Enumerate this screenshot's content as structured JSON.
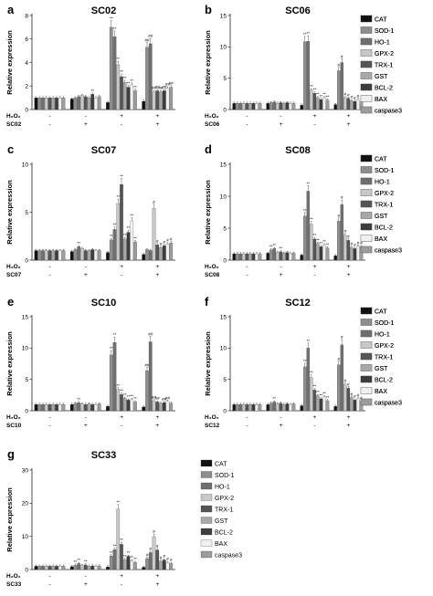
{
  "figure": {
    "condition_rows": [
      "H₂O₂",
      "SC02",
      "SC06",
      "SC07",
      "SC08",
      "SC10",
      "SC12",
      "SC33"
    ],
    "signs": {
      "minus": "-",
      "plus": "+"
    }
  },
  "colors": {
    "CAT": "#111111",
    "SOD-1": "#8e8e8e",
    "HO-1": "#6f6f6f",
    "GPX-2": "#c8c8c8",
    "TRX-1": "#555555",
    "GST": "#a8a8a8",
    "BCL-2": "#3d3d3d",
    "BAX": "#f0f0f0",
    "caspase3": "#9c9c9c"
  },
  "chart_data": [
    {
      "panel": "a",
      "type": "bar",
      "title": "SC02",
      "ylabel": "Relative expression",
      "ylim": [
        0,
        8
      ],
      "yticks": [
        "0",
        "2",
        "4",
        "6",
        "8"
      ],
      "treatment_label": "SC02",
      "groups": [
        {
          "h2o2": "-",
          "treatment": "-"
        },
        {
          "h2o2": "-",
          "treatment": "+"
        },
        {
          "h2o2": "+",
          "treatment": "-"
        },
        {
          "h2o2": "+",
          "treatment": "+"
        }
      ],
      "series": [
        {
          "name": "CAT",
          "values": [
            1.0,
            0.9,
            0.6,
            0.7
          ]
        },
        {
          "name": "SOD-1",
          "values": [
            1.0,
            1.0,
            7.0,
            5.3
          ]
        },
        {
          "name": "HO-1",
          "values": [
            1.0,
            1.1,
            6.2,
            5.6
          ]
        },
        {
          "name": "GPX-2",
          "values": [
            1.0,
            1.2,
            3.8,
            1.5
          ]
        },
        {
          "name": "TRX-1",
          "values": [
            1.0,
            1.1,
            2.8,
            1.6
          ]
        },
        {
          "name": "GST",
          "values": [
            1.0,
            1.0,
            2.3,
            1.5
          ]
        },
        {
          "name": "BCL-2",
          "values": [
            1.0,
            1.3,
            1.9,
            1.6
          ]
        },
        {
          "name": "BAX",
          "values": [
            1.0,
            1.0,
            2.1,
            1.8
          ]
        },
        {
          "name": "caspase3",
          "values": [
            1.0,
            1.1,
            1.6,
            1.9
          ]
        }
      ],
      "annotations": [
        "**",
        "##"
      ]
    },
    {
      "panel": "b",
      "type": "bar",
      "title": "SC06",
      "ylabel": "Relative expression",
      "ylim": [
        0,
        15
      ],
      "yticks": [
        "0",
        "5",
        "10",
        "15"
      ],
      "treatment_label": "SC06",
      "groups": [
        {
          "h2o2": "-",
          "treatment": "-"
        },
        {
          "h2o2": "-",
          "treatment": "+"
        },
        {
          "h2o2": "+",
          "treatment": "-"
        },
        {
          "h2o2": "+",
          "treatment": "+"
        }
      ],
      "series": [
        {
          "name": "CAT",
          "values": [
            1.0,
            1.0,
            0.7,
            0.8
          ]
        },
        {
          "name": "SOD-1",
          "values": [
            1.0,
            1.1,
            10.8,
            6.2
          ]
        },
        {
          "name": "HO-1",
          "values": [
            1.0,
            1.2,
            10.9,
            7.5
          ]
        },
        {
          "name": "GPX-2",
          "values": [
            1.0,
            1.0,
            3.1,
            1.9
          ]
        },
        {
          "name": "TRX-1",
          "values": [
            1.0,
            1.1,
            2.6,
            1.8
          ]
        },
        {
          "name": "GST",
          "values": [
            1.0,
            1.0,
            1.9,
            1.4
          ]
        },
        {
          "name": "BCL-2",
          "values": [
            1.0,
            1.1,
            1.6,
            1.3
          ]
        },
        {
          "name": "BAX",
          "values": [
            1.0,
            1.0,
            1.9,
            1.6
          ]
        },
        {
          "name": "caspase3",
          "values": [
            1.0,
            1.0,
            1.5,
            1.2
          ]
        }
      ],
      "annotations": [
        "**",
        "#"
      ]
    },
    {
      "panel": "c",
      "type": "bar",
      "title": "SC07",
      "ylabel": "Relative expression",
      "ylim": [
        0,
        10
      ],
      "yticks": [
        "0",
        "5",
        "10"
      ],
      "treatment_label": "SC07",
      "groups": [
        {
          "h2o2": "-",
          "treatment": "-"
        },
        {
          "h2o2": "-",
          "treatment": "+"
        },
        {
          "h2o2": "+",
          "treatment": "-"
        },
        {
          "h2o2": "+",
          "treatment": "+"
        }
      ],
      "series": [
        {
          "name": "CAT",
          "values": [
            1.0,
            0.9,
            0.8,
            0.6
          ]
        },
        {
          "name": "SOD-1",
          "values": [
            1.0,
            1.1,
            2.1,
            1.1
          ]
        },
        {
          "name": "HO-1",
          "values": [
            1.0,
            1.4,
            3.2,
            1.0
          ]
        },
        {
          "name": "GPX-2",
          "values": [
            1.0,
            1.2,
            5.9,
            5.4
          ]
        },
        {
          "name": "TRX-1",
          "values": [
            1.0,
            1.0,
            7.9,
            1.6
          ]
        },
        {
          "name": "GST",
          "values": [
            1.0,
            1.0,
            2.2,
            1.3
          ]
        },
        {
          "name": "BCL-2",
          "values": [
            1.0,
            1.1,
            2.9,
            1.5
          ]
        },
        {
          "name": "BAX",
          "values": [
            1.0,
            1.0,
            4.1,
            1.7
          ]
        },
        {
          "name": "caspase3",
          "values": [
            1.0,
            1.0,
            1.9,
            1.8
          ]
        }
      ],
      "annotations": [
        "**",
        "#"
      ]
    },
    {
      "panel": "d",
      "type": "bar",
      "title": "SC08",
      "ylabel": "Relative expression",
      "ylim": [
        0,
        15
      ],
      "yticks": [
        "0",
        "5",
        "10",
        "15"
      ],
      "treatment_label": "SC08",
      "groups": [
        {
          "h2o2": "-",
          "treatment": "-"
        },
        {
          "h2o2": "-",
          "treatment": "+"
        },
        {
          "h2o2": "+",
          "treatment": "-"
        },
        {
          "h2o2": "+",
          "treatment": "+"
        }
      ],
      "series": [
        {
          "name": "CAT",
          "values": [
            1.0,
            1.1,
            0.8,
            0.7
          ]
        },
        {
          "name": "SOD-1",
          "values": [
            1.0,
            1.6,
            6.9,
            6.1
          ]
        },
        {
          "name": "HO-1",
          "values": [
            1.0,
            1.8,
            10.8,
            8.7
          ]
        },
        {
          "name": "GPX-2",
          "values": [
            1.0,
            1.2,
            5.6,
            3.9
          ]
        },
        {
          "name": "TRX-1",
          "values": [
            1.0,
            1.3,
            3.3,
            3.1
          ]
        },
        {
          "name": "GST",
          "values": [
            1.0,
            1.1,
            2.6,
            2.0
          ]
        },
        {
          "name": "BCL-2",
          "values": [
            1.0,
            1.2,
            2.1,
            1.8
          ]
        },
        {
          "name": "BAX",
          "values": [
            1.0,
            1.0,
            2.4,
            2.2
          ]
        },
        {
          "name": "caspase3",
          "values": [
            1.0,
            1.1,
            1.9,
            2.1
          ]
        }
      ],
      "annotations": [
        "**",
        "#"
      ]
    },
    {
      "panel": "e",
      "type": "bar",
      "title": "SC10",
      "ylabel": "Relative expression",
      "ylim": [
        0,
        15
      ],
      "yticks": [
        "0",
        "5",
        "10",
        "15"
      ],
      "treatment_label": "SC10",
      "groups": [
        {
          "h2o2": "-",
          "treatment": "-"
        },
        {
          "h2o2": "-",
          "treatment": "+"
        },
        {
          "h2o2": "+",
          "treatment": "-"
        },
        {
          "h2o2": "+",
          "treatment": "+"
        }
      ],
      "series": [
        {
          "name": "CAT",
          "values": [
            1.0,
            1.0,
            0.7,
            0.6
          ]
        },
        {
          "name": "SOD-1",
          "values": [
            1.0,
            1.2,
            8.9,
            6.4
          ]
        },
        {
          "name": "HO-1",
          "values": [
            1.0,
            1.3,
            10.9,
            11.0
          ]
        },
        {
          "name": "GPX-2",
          "values": [
            1.0,
            1.1,
            3.4,
            1.6
          ]
        },
        {
          "name": "TRX-1",
          "values": [
            1.0,
            1.0,
            2.6,
            1.4
          ]
        },
        {
          "name": "GST",
          "values": [
            1.0,
            1.1,
            2.0,
            1.2
          ]
        },
        {
          "name": "BCL-2",
          "values": [
            1.0,
            1.0,
            1.7,
            1.3
          ]
        },
        {
          "name": "BAX",
          "values": [
            1.0,
            1.0,
            1.8,
            1.5
          ]
        },
        {
          "name": "caspase3",
          "values": [
            1.0,
            1.1,
            1.4,
            1.2
          ]
        }
      ],
      "annotations": [
        "**",
        "##"
      ]
    },
    {
      "panel": "f",
      "type": "bar",
      "title": "SC12",
      "ylabel": "Relative expression",
      "ylim": [
        0,
        15
      ],
      "yticks": [
        "0",
        "5",
        "10",
        "15"
      ],
      "treatment_label": "SC12",
      "groups": [
        {
          "h2o2": "-",
          "treatment": "-"
        },
        {
          "h2o2": "-",
          "treatment": "+"
        },
        {
          "h2o2": "+",
          "treatment": "-"
        },
        {
          "h2o2": "+",
          "treatment": "+"
        }
      ],
      "series": [
        {
          "name": "CAT",
          "values": [
            1.0,
            1.0,
            0.8,
            0.7
          ]
        },
        {
          "name": "SOD-1",
          "values": [
            1.0,
            1.2,
            7.0,
            7.3
          ]
        },
        {
          "name": "HO-1",
          "values": [
            1.0,
            1.4,
            10.0,
            10.5
          ]
        },
        {
          "name": "GPX-2",
          "values": [
            1.0,
            1.1,
            5.3,
            4.1
          ]
        },
        {
          "name": "TRX-1",
          "values": [
            1.0,
            1.2,
            3.3,
            3.6
          ]
        },
        {
          "name": "GST",
          "values": [
            1.0,
            1.0,
            2.4,
            2.1
          ]
        },
        {
          "name": "BCL-2",
          "values": [
            1.0,
            1.1,
            1.9,
            1.7
          ]
        },
        {
          "name": "BAX",
          "values": [
            1.0,
            1.0,
            2.2,
            1.9
          ]
        },
        {
          "name": "caspase3",
          "values": [
            1.0,
            1.1,
            1.6,
            1.5
          ]
        }
      ],
      "annotations": [
        "**",
        "#"
      ]
    },
    {
      "panel": "g",
      "type": "bar",
      "title": "SC33",
      "ylabel": "Relative expression",
      "ylim": [
        0,
        30
      ],
      "yticks": [
        "0",
        "10",
        "20",
        "30"
      ],
      "treatment_label": "SC33",
      "groups": [
        {
          "h2o2": "-",
          "treatment": "-"
        },
        {
          "h2o2": "-",
          "treatment": "+"
        },
        {
          "h2o2": "+",
          "treatment": "-"
        },
        {
          "h2o2": "+",
          "treatment": "+"
        }
      ],
      "series": [
        {
          "name": "CAT",
          "values": [
            1.0,
            0.9,
            0.8,
            0.7
          ]
        },
        {
          "name": "SOD-1",
          "values": [
            1.0,
            1.3,
            4.1,
            3.3
          ]
        },
        {
          "name": "HO-1",
          "values": [
            1.0,
            1.8,
            6.0,
            5.1
          ]
        },
        {
          "name": "GPX-2",
          "values": [
            1.0,
            1.2,
            18.2,
            9.9
          ]
        },
        {
          "name": "TRX-1",
          "values": [
            1.0,
            1.4,
            7.6,
            5.9
          ]
        },
        {
          "name": "GST",
          "values": [
            1.0,
            1.0,
            3.0,
            2.5
          ]
        },
        {
          "name": "BCL-2",
          "values": [
            1.0,
            1.1,
            4.0,
            2.9
          ]
        },
        {
          "name": "BAX",
          "values": [
            1.0,
            1.0,
            2.6,
            2.1
          ]
        },
        {
          "name": "caspase3",
          "values": [
            1.0,
            1.1,
            2.1,
            1.8
          ]
        }
      ],
      "annotations": [
        "**",
        "#"
      ]
    }
  ]
}
